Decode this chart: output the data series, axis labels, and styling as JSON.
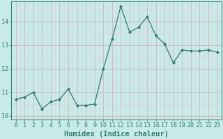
{
  "x": [
    0,
    1,
    2,
    3,
    4,
    5,
    6,
    7,
    8,
    9,
    10,
    11,
    12,
    13,
    14,
    15,
    16,
    17,
    18,
    19,
    20,
    21,
    22,
    23
  ],
  "y": [
    10.7,
    10.8,
    11.0,
    10.3,
    10.6,
    10.7,
    11.15,
    10.45,
    10.45,
    10.5,
    12.0,
    13.25,
    14.65,
    13.55,
    13.75,
    14.2,
    13.4,
    13.05,
    12.25,
    12.8,
    12.75,
    12.75,
    12.8,
    12.7
  ],
  "line_color": "#2e7d6e",
  "marker": "D",
  "marker_size": 2.0,
  "bg_color": "#c8eae8",
  "grid_color_minor": "#e8c8cc",
  "grid_color_major": "#d4a8b0",
  "xlabel": "Humidex (Indice chaleur)",
  "xlim": [
    -0.5,
    23.5
  ],
  "ylim": [
    9.85,
    14.85
  ],
  "yticks": [
    10,
    11,
    12,
    13,
    14
  ],
  "xticks": [
    0,
    1,
    2,
    3,
    4,
    5,
    6,
    7,
    8,
    9,
    10,
    11,
    12,
    13,
    14,
    15,
    16,
    17,
    18,
    19,
    20,
    21,
    22,
    23
  ],
  "tick_label_size": 6.0,
  "xlabel_size": 7.5,
  "axis_color": "#2e7d6e",
  "linewidth": 0.9
}
